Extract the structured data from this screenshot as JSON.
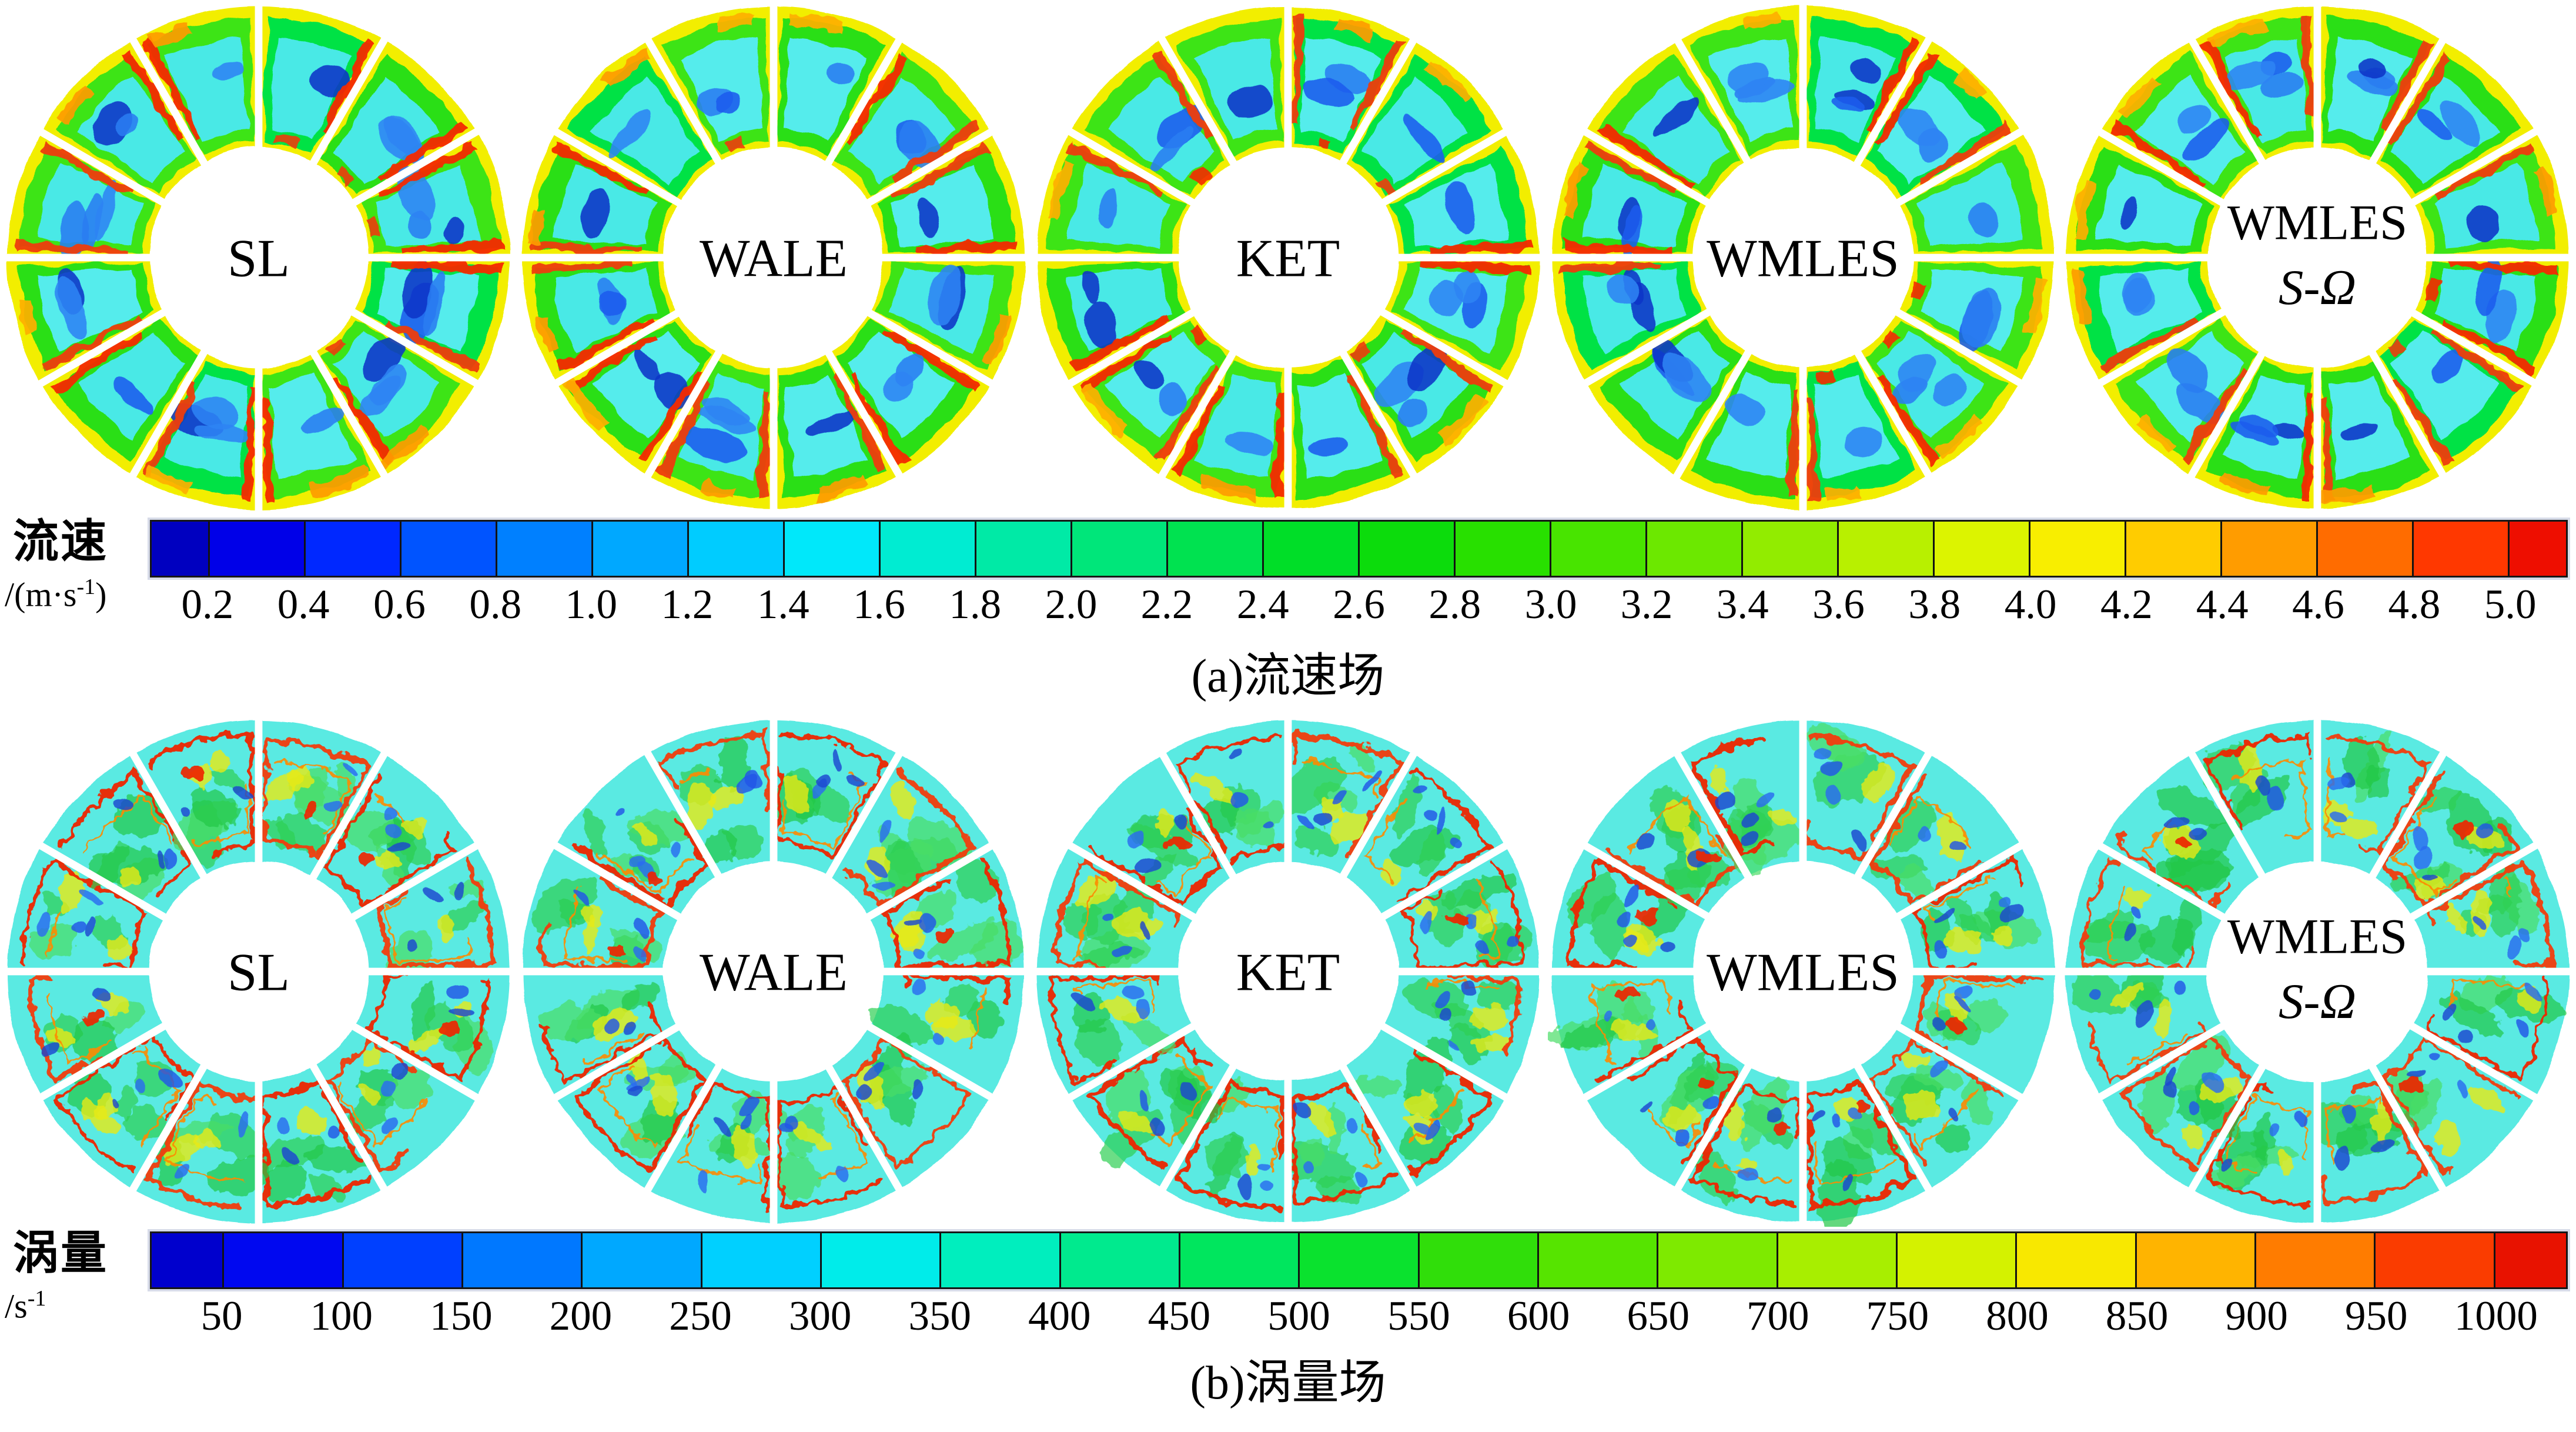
{
  "figure_title": "LES turbulence model comparison: annular flow-channel contour fields",
  "panels": [
    {
      "id": "a",
      "caption": "(a)流速场",
      "field_style": "velocity",
      "models": [
        {
          "label": "SL"
        },
        {
          "label": "WALE"
        },
        {
          "label": "KET"
        },
        {
          "label": "WMLES"
        },
        {
          "label": "WMLES",
          "label2": "S-Ω"
        }
      ],
      "colorbar": {
        "title": "流速",
        "unit": {
          "prefix": "/(m·s",
          "sup": "-1",
          "suffix": ")"
        },
        "ticks": [
          "0.2",
          "0.4",
          "0.6",
          "0.8",
          "1.0",
          "1.2",
          "1.4",
          "1.6",
          "1.8",
          "2.0",
          "2.2",
          "2.4",
          "2.6",
          "2.8",
          "3.0",
          "3.2",
          "3.4",
          "3.6",
          "3.8",
          "4.0",
          "4.2",
          "4.4",
          "4.6",
          "4.8",
          "5.0"
        ],
        "segment_colors": [
          "#0000c0",
          "#0000e8",
          "#0028ff",
          "#0054ff",
          "#0080ff",
          "#00a8ff",
          "#00ccff",
          "#00e8fa",
          "#00ecd2",
          "#00eaa6",
          "#00e67a",
          "#00e250",
          "#00de28",
          "#0cdc0c",
          "#28e000",
          "#48e400",
          "#6ce800",
          "#92ec00",
          "#b8f000",
          "#dcf400",
          "#f8ee00",
          "#ffcc00",
          "#ff9c00",
          "#ff6c00",
          "#ff3800",
          "#ee0e00"
        ]
      },
      "ring_palette": {
        "base": "#f2ee00",
        "mid": [
          "#2adf12",
          "#3ee414",
          "#00e244"
        ],
        "core": [
          "#49e9e6",
          "#55ecec"
        ],
        "blobs": [
          "#1b5cee",
          "#2e84f4",
          "#0e35c8",
          "#2a7df2"
        ],
        "streaks": [
          "#f52c00",
          "#ee3c0c"
        ],
        "accents": [
          "#ff9c00",
          "#ffb000"
        ]
      }
    },
    {
      "id": "b",
      "caption": "(b)涡量场",
      "field_style": "vorticity",
      "models": [
        {
          "label": "SL"
        },
        {
          "label": "WALE"
        },
        {
          "label": "KET"
        },
        {
          "label": "WMLES"
        },
        {
          "label": "WMLES",
          "label2": "S-Ω"
        }
      ],
      "colorbar": {
        "title": "涡量",
        "unit": {
          "prefix": "/s",
          "sup": "-1",
          "suffix": ""
        },
        "ticks": [
          "50",
          "100",
          "150",
          "200",
          "250",
          "300",
          "350",
          "400",
          "450",
          "500",
          "550",
          "600",
          "650",
          "700",
          "750",
          "800",
          "850",
          "900",
          "950",
          "1000"
        ],
        "segment_colors": [
          "#0000cd",
          "#0008f0",
          "#0040ff",
          "#0078ff",
          "#00a8ff",
          "#00d0ff",
          "#00ecea",
          "#00eebe",
          "#00ea8e",
          "#00e65e",
          "#0ae22e",
          "#30de0a",
          "#56e400",
          "#7eea00",
          "#a8ee00",
          "#d4f200",
          "#f8e800",
          "#ffb400",
          "#ff7c00",
          "#fa3c00",
          "#e81200"
        ]
      },
      "ring_palette": {
        "base": "#5aeae2",
        "mid": [
          "#2fd052",
          "#4ade66",
          "#20c846"
        ],
        "core": [
          "#35d8cc"
        ],
        "blobs": [
          "#2257e8",
          "#1f46d0",
          "#2a6cf0"
        ],
        "streaks": [
          "#ee2606",
          "#f23c0c"
        ],
        "accents": [
          "#ff8a00",
          "#e8ea12"
        ]
      }
    }
  ],
  "chart_data": [
    {
      "type": "heatmap",
      "subtype": "annular-contour-field",
      "panel": "a",
      "title": "(a)流速场",
      "quantity": "流速",
      "unit": "m·s⁻¹",
      "models": [
        "SL",
        "WALE",
        "KET",
        "WMLES",
        "WMLES S-Ω"
      ],
      "sectors_per_ring": 12,
      "colormap": "rainbow",
      "legend_position": "bottom",
      "scale_min": 0.2,
      "scale_max": 5.0,
      "scale_step": 0.2,
      "colorbar_ticks": [
        0.2,
        0.4,
        0.6,
        0.8,
        1.0,
        1.2,
        1.4,
        1.6,
        1.8,
        2.0,
        2.2,
        2.4,
        2.6,
        2.8,
        3.0,
        3.2,
        3.4,
        3.6,
        3.8,
        4.0,
        4.2,
        4.4,
        4.6,
        4.8,
        5.0
      ]
    },
    {
      "type": "heatmap",
      "subtype": "annular-contour-field",
      "panel": "b",
      "title": "(b)涡量场",
      "quantity": "涡量",
      "unit": "s⁻¹",
      "models": [
        "SL",
        "WALE",
        "KET",
        "WMLES",
        "WMLES S-Ω"
      ],
      "sectors_per_ring": 12,
      "colormap": "rainbow",
      "legend_position": "bottom",
      "scale_min": 50,
      "scale_max": 1000,
      "scale_step": 50,
      "colorbar_ticks": [
        50,
        100,
        150,
        200,
        250,
        300,
        350,
        400,
        450,
        500,
        550,
        600,
        650,
        700,
        750,
        800,
        850,
        900,
        950,
        1000
      ]
    }
  ]
}
